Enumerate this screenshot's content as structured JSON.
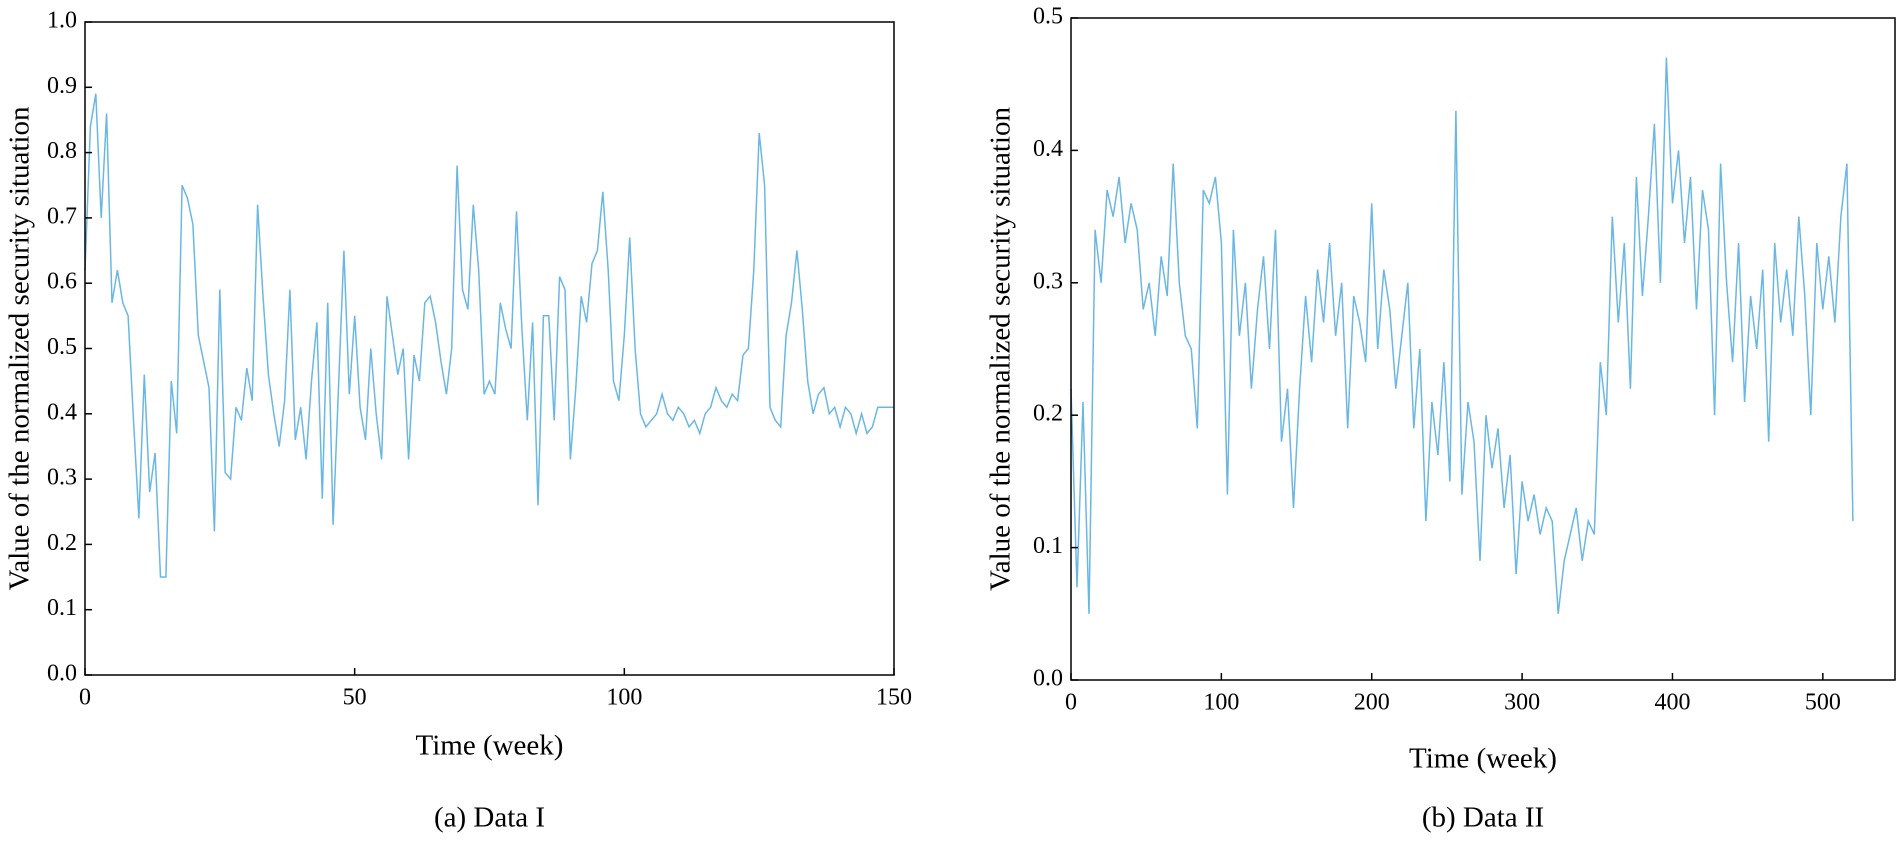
{
  "chart_data": [
    {
      "type": "line",
      "caption": "(a) Data I",
      "xlabel": "Time (week)",
      "ylabel": "Value of the normalized security situation",
      "color": "#6ab7e4",
      "xlim": [
        0,
        150
      ],
      "xticks": [
        0,
        50,
        100,
        150
      ],
      "ylim": [
        0,
        1
      ],
      "yticks": [
        {
          "value": 0,
          "label": "0.0"
        },
        0.1,
        0.2,
        0.3,
        0.4,
        0.5,
        0.6,
        0.7,
        0.8,
        0.9,
        {
          "value": 1,
          "label": "1.0"
        }
      ],
      "x": [
        0,
        1,
        2,
        3,
        4,
        5,
        6,
        7,
        8,
        9,
        10,
        11,
        12,
        13,
        14,
        15,
        16,
        17,
        18,
        19,
        20,
        21,
        22,
        23,
        24,
        25,
        26,
        27,
        28,
        29,
        30,
        31,
        32,
        33,
        34,
        35,
        36,
        37,
        38,
        39,
        40,
        41,
        42,
        43,
        44,
        45,
        46,
        47,
        48,
        49,
        50,
        51,
        52,
        53,
        54,
        55,
        56,
        57,
        58,
        59,
        60,
        61,
        62,
        63,
        64,
        65,
        66,
        67,
        68,
        69,
        70,
        71,
        72,
        73,
        74,
        75,
        76,
        77,
        78,
        79,
        80,
        81,
        82,
        83,
        84,
        85,
        86,
        87,
        88,
        89,
        90,
        91,
        92,
        93,
        94,
        95,
        96,
        97,
        98,
        99,
        100,
        101,
        102,
        103,
        104,
        105,
        106,
        107,
        108,
        109,
        110,
        111,
        112,
        113,
        114,
        115,
        116,
        117,
        118,
        119,
        120,
        121,
        122,
        123,
        124,
        125,
        126,
        127,
        128,
        129,
        130,
        131,
        132,
        133,
        134,
        135,
        136,
        137,
        138,
        139,
        140,
        141,
        142,
        143,
        144,
        145,
        146,
        147,
        148,
        149,
        150
      ],
      "values": [
        0.62,
        0.84,
        0.89,
        0.7,
        0.86,
        0.57,
        0.62,
        0.57,
        0.55,
        0.39,
        0.24,
        0.46,
        0.28,
        0.34,
        0.15,
        0.15,
        0.45,
        0.37,
        0.75,
        0.73,
        0.69,
        0.52,
        0.48,
        0.44,
        0.22,
        0.59,
        0.31,
        0.3,
        0.41,
        0.39,
        0.47,
        0.42,
        0.72,
        0.58,
        0.46,
        0.4,
        0.35,
        0.42,
        0.59,
        0.36,
        0.41,
        0.33,
        0.45,
        0.54,
        0.27,
        0.57,
        0.23,
        0.44,
        0.65,
        0.43,
        0.55,
        0.41,
        0.36,
        0.5,
        0.4,
        0.33,
        0.58,
        0.52,
        0.46,
        0.5,
        0.33,
        0.49,
        0.45,
        0.57,
        0.58,
        0.54,
        0.48,
        0.43,
        0.5,
        0.78,
        0.59,
        0.56,
        0.72,
        0.62,
        0.43,
        0.45,
        0.43,
        0.57,
        0.53,
        0.5,
        0.71,
        0.53,
        0.39,
        0.54,
        0.26,
        0.55,
        0.55,
        0.39,
        0.61,
        0.59,
        0.33,
        0.44,
        0.58,
        0.54,
        0.63,
        0.65,
        0.74,
        0.62,
        0.45,
        0.42,
        0.52,
        0.67,
        0.5,
        0.4,
        0.38,
        0.39,
        0.4,
        0.43,
        0.4,
        0.39,
        0.41,
        0.4,
        0.38,
        0.39,
        0.37,
        0.4,
        0.41,
        0.44,
        0.42,
        0.41,
        0.43,
        0.42,
        0.49,
        0.5,
        0.62,
        0.83,
        0.75,
        0.41,
        0.39,
        0.38,
        0.52,
        0.57,
        0.65,
        0.56,
        0.45,
        0.4,
        0.43,
        0.44,
        0.4,
        0.41,
        0.38,
        0.41,
        0.4,
        0.37,
        0.4,
        0.37,
        0.38,
        0.41,
        0.41,
        0.41,
        0.41
      ]
    },
    {
      "type": "line",
      "caption": "(b) Data II",
      "xlabel": "Time (week)",
      "ylabel": "Value of the normalized security situation",
      "color": "#6ab7e4",
      "xlim": [
        0,
        548
      ],
      "xticks": [
        0,
        100,
        200,
        300,
        400,
        500
      ],
      "ylim": [
        0,
        0.5
      ],
      "yticks": [
        {
          "value": 0,
          "label": "0.0"
        },
        0.1,
        0.2,
        0.3,
        0.4,
        0.5
      ],
      "x": [
        0,
        4,
        8,
        12,
        16,
        20,
        24,
        28,
        32,
        36,
        40,
        44,
        48,
        52,
        56,
        60,
        64,
        68,
        72,
        76,
        80,
        84,
        88,
        92,
        96,
        100,
        104,
        108,
        112,
        116,
        120,
        124,
        128,
        132,
        136,
        140,
        144,
        148,
        152,
        156,
        160,
        164,
        168,
        172,
        176,
        180,
        184,
        188,
        192,
        196,
        200,
        204,
        208,
        212,
        216,
        220,
        224,
        228,
        232,
        236,
        240,
        244,
        248,
        252,
        256,
        260,
        264,
        268,
        272,
        276,
        280,
        284,
        288,
        292,
        296,
        300,
        304,
        308,
        312,
        316,
        320,
        324,
        328,
        332,
        336,
        340,
        344,
        348,
        352,
        356,
        360,
        364,
        368,
        372,
        376,
        380,
        384,
        388,
        392,
        396,
        400,
        404,
        408,
        412,
        416,
        420,
        424,
        428,
        432,
        436,
        440,
        444,
        448,
        452,
        456,
        460,
        464,
        468,
        472,
        476,
        480,
        484,
        488,
        492,
        496,
        500,
        504,
        508,
        512,
        516,
        520
      ],
      "values": [
        0.22,
        0.07,
        0.21,
        0.05,
        0.34,
        0.3,
        0.37,
        0.35,
        0.38,
        0.33,
        0.36,
        0.34,
        0.28,
        0.3,
        0.26,
        0.32,
        0.29,
        0.39,
        0.3,
        0.26,
        0.25,
        0.19,
        0.37,
        0.36,
        0.38,
        0.33,
        0.14,
        0.34,
        0.26,
        0.3,
        0.22,
        0.28,
        0.32,
        0.25,
        0.34,
        0.18,
        0.22,
        0.13,
        0.22,
        0.29,
        0.24,
        0.31,
        0.27,
        0.33,
        0.26,
        0.3,
        0.19,
        0.29,
        0.27,
        0.24,
        0.36,
        0.25,
        0.31,
        0.28,
        0.22,
        0.26,
        0.3,
        0.19,
        0.25,
        0.12,
        0.21,
        0.17,
        0.24,
        0.15,
        0.43,
        0.14,
        0.21,
        0.18,
        0.09,
        0.2,
        0.16,
        0.19,
        0.13,
        0.17,
        0.08,
        0.15,
        0.12,
        0.14,
        0.11,
        0.13,
        0.12,
        0.05,
        0.09,
        0.11,
        0.13,
        0.09,
        0.12,
        0.11,
        0.24,
        0.2,
        0.35,
        0.27,
        0.33,
        0.22,
        0.38,
        0.29,
        0.35,
        0.42,
        0.3,
        0.47,
        0.36,
        0.4,
        0.33,
        0.38,
        0.28,
        0.37,
        0.34,
        0.2,
        0.39,
        0.3,
        0.24,
        0.33,
        0.21,
        0.29,
        0.25,
        0.31,
        0.18,
        0.33,
        0.27,
        0.31,
        0.26,
        0.35,
        0.29,
        0.2,
        0.33,
        0.28,
        0.32,
        0.27,
        0.35,
        0.39,
        0.12
      ]
    }
  ]
}
